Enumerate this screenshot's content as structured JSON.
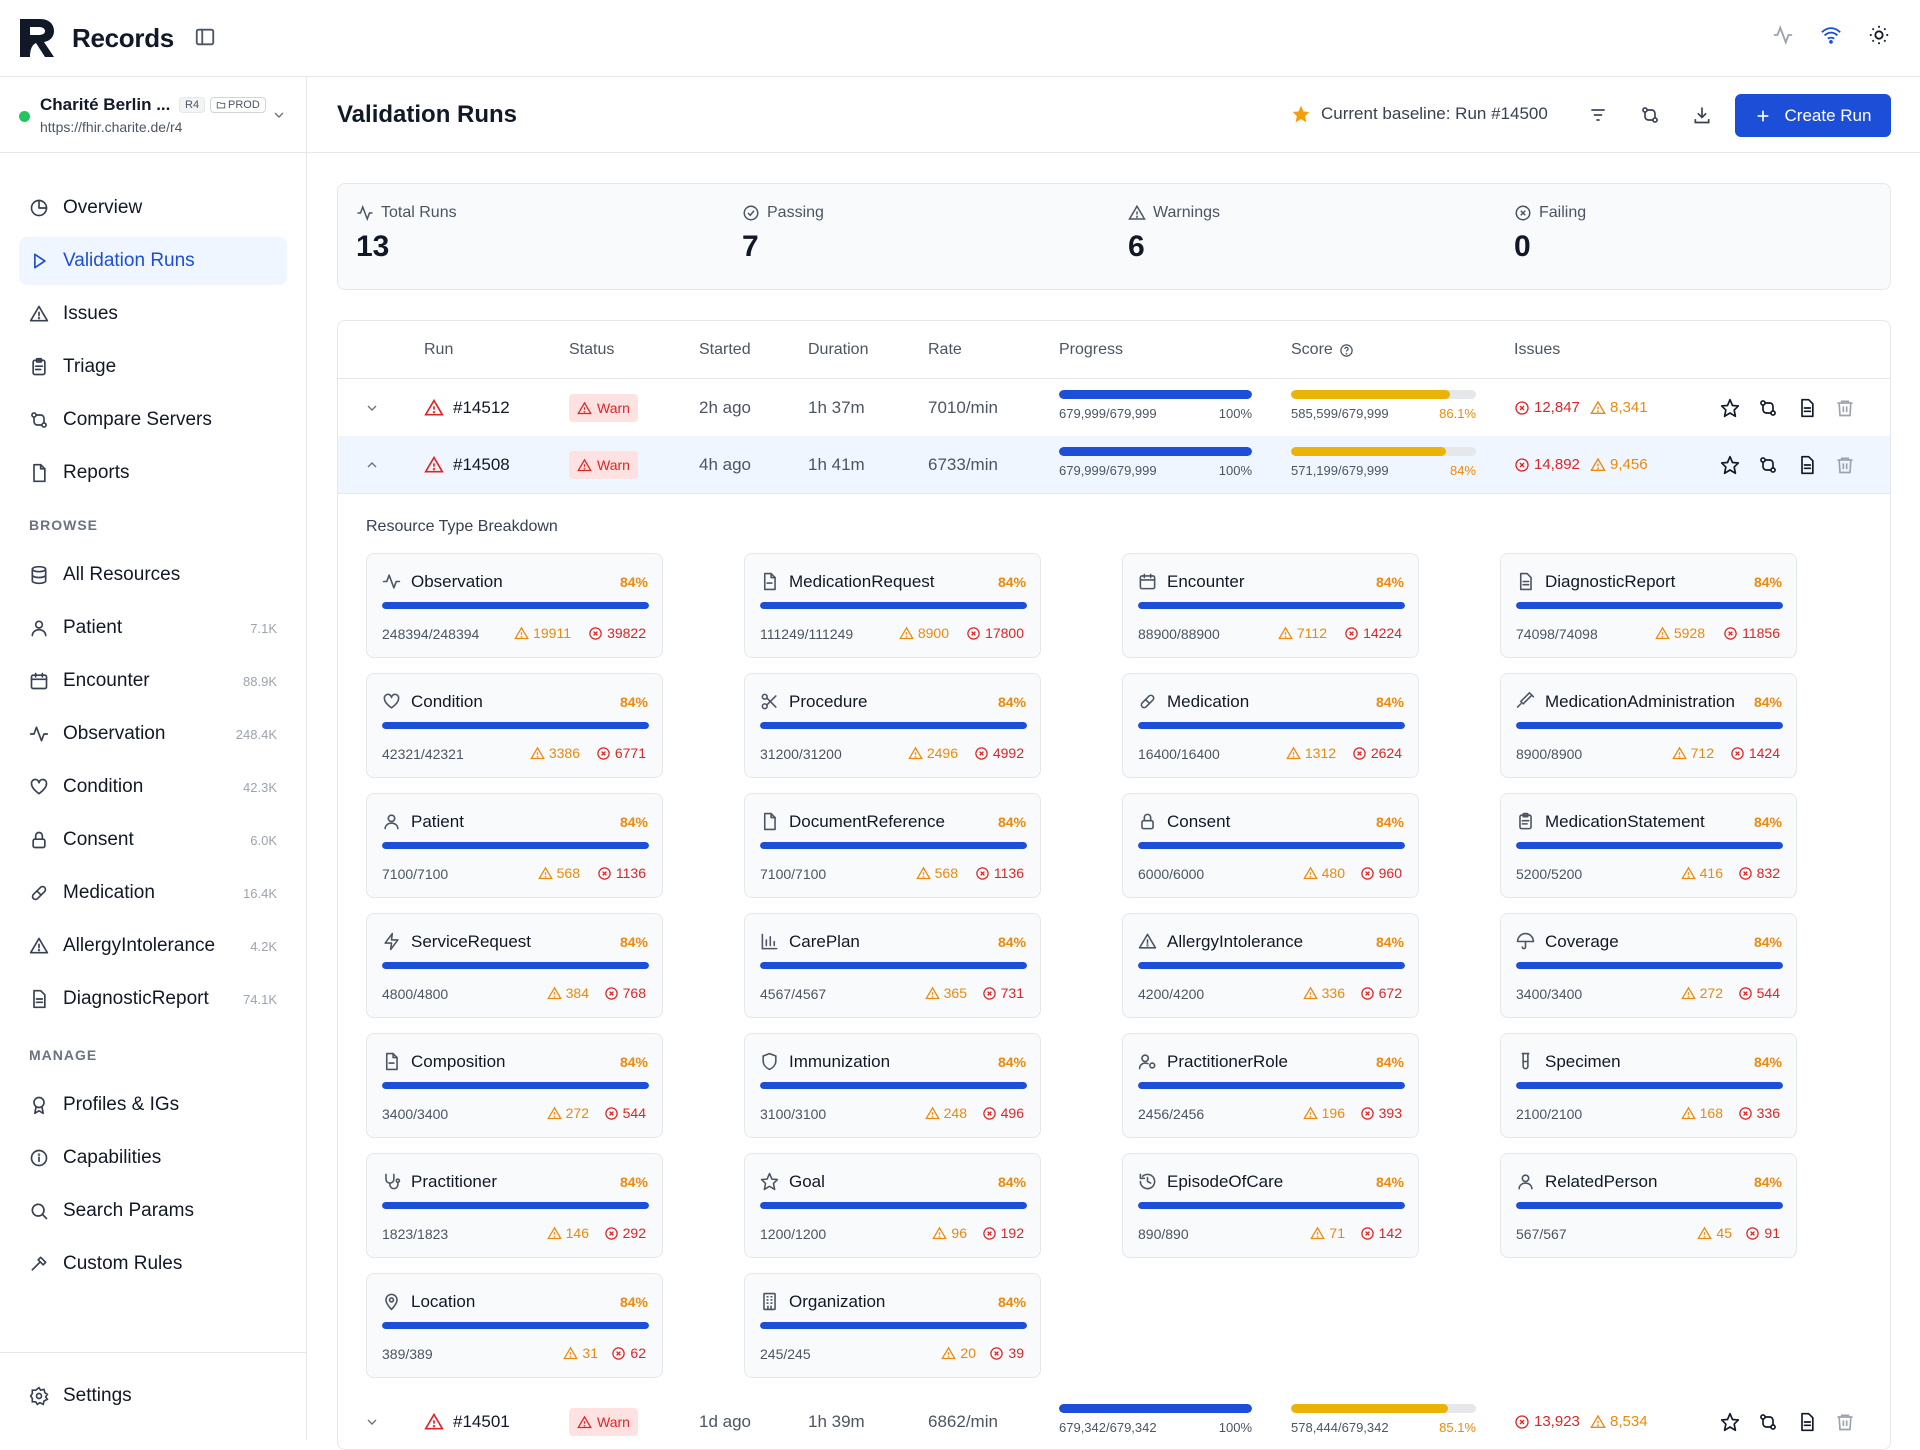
{
  "app": {
    "title": "Records"
  },
  "server": {
    "name": "Charité Berlin ...",
    "version": "R4",
    "env": "PROD",
    "url": "https://fhir.charite.de/r4"
  },
  "sidebar": {
    "nav": [
      {
        "label": "Overview",
        "icon": "pie-chart-icon"
      },
      {
        "label": "Validation Runs",
        "icon": "play-icon"
      },
      {
        "label": "Issues",
        "icon": "warning-icon"
      },
      {
        "label": "Triage",
        "icon": "clipboard-icon"
      },
      {
        "label": "Compare Servers",
        "icon": "compare-icon"
      },
      {
        "label": "Reports",
        "icon": "document-icon"
      }
    ],
    "browse_label": "BROWSE",
    "browse": [
      {
        "label": "All Resources",
        "count": ""
      },
      {
        "label": "Patient",
        "count": "7.1K"
      },
      {
        "label": "Encounter",
        "count": "88.9K"
      },
      {
        "label": "Observation",
        "count": "248.4K"
      },
      {
        "label": "Condition",
        "count": "42.3K"
      },
      {
        "label": "Consent",
        "count": "6.0K"
      },
      {
        "label": "Medication",
        "count": "16.4K"
      },
      {
        "label": "AllergyIntolerance",
        "count": "4.2K"
      },
      {
        "label": "DiagnosticReport",
        "count": "74.1K"
      }
    ],
    "manage_label": "MANAGE",
    "manage": [
      {
        "label": "Profiles & IGs"
      },
      {
        "label": "Capabilities"
      },
      {
        "label": "Search Params"
      },
      {
        "label": "Custom Rules"
      }
    ],
    "settings": "Settings"
  },
  "header": {
    "title": "Validation Runs",
    "baseline": "Current baseline: Run #14500",
    "create": "Create Run"
  },
  "stats": [
    {
      "label": "Total Runs",
      "value": "13"
    },
    {
      "label": "Passing",
      "value": "7"
    },
    {
      "label": "Warnings",
      "value": "6"
    },
    {
      "label": "Failing",
      "value": "0"
    }
  ],
  "table": {
    "columns": [
      "Run",
      "Status",
      "Started",
      "Duration",
      "Rate",
      "Progress",
      "Score",
      "Issues"
    ],
    "rows": [
      {
        "id": "#14512",
        "status": "Warn",
        "started": "2h ago",
        "duration": "1h 37m",
        "rate": "7010/min",
        "progress_text": "679,999/679,999",
        "progress_pct": "100%",
        "progress": 1.0,
        "score_text": "585,599/679,999",
        "score_pct": "86.1%",
        "score": 0.861,
        "errors": "12,847",
        "warnings": "8,341"
      },
      {
        "id": "#14508",
        "status": "Warn",
        "started": "4h ago",
        "duration": "1h 41m",
        "rate": "6733/min",
        "progress_text": "679,999/679,999",
        "progress_pct": "100%",
        "progress": 1.0,
        "score_text": "571,199/679,999",
        "score_pct": "84%",
        "score": 0.84,
        "errors": "14,892",
        "warnings": "9,456"
      },
      {
        "id": "#14501",
        "status": "Warn",
        "started": "1d ago",
        "duration": "1h 39m",
        "rate": "6862/min",
        "progress_text": "679,342/679,342",
        "progress_pct": "100%",
        "progress": 1.0,
        "score_text": "578,444/679,342",
        "score_pct": "85.1%",
        "score": 0.851,
        "errors": "13,923",
        "warnings": "8,534"
      }
    ]
  },
  "breakdown": {
    "title": "Resource Type Breakdown",
    "items": [
      {
        "name": "Observation",
        "icon": "activity-icon",
        "pct": "84%",
        "fill": 1.0,
        "count": "248394/248394",
        "warn": "19911",
        "err": "39822"
      },
      {
        "name": "MedicationRequest",
        "icon": "file-icon",
        "pct": "84%",
        "fill": 1.0,
        "count": "111249/111249",
        "warn": "8900",
        "err": "17800"
      },
      {
        "name": "Encounter",
        "icon": "calendar-icon",
        "pct": "84%",
        "fill": 1.0,
        "count": "88900/88900",
        "warn": "7112",
        "err": "14224"
      },
      {
        "name": "DiagnosticReport",
        "icon": "report-icon",
        "pct": "84%",
        "fill": 1.0,
        "count": "74098/74098",
        "warn": "5928",
        "err": "11856"
      },
      {
        "name": "Condition",
        "icon": "heart-icon",
        "pct": "84%",
        "fill": 1.0,
        "count": "42321/42321",
        "warn": "3386",
        "err": "6771"
      },
      {
        "name": "Procedure",
        "icon": "scissors-icon",
        "pct": "84%",
        "fill": 1.0,
        "count": "31200/31200",
        "warn": "2496",
        "err": "4992"
      },
      {
        "name": "Medication",
        "icon": "pill-icon",
        "pct": "84%",
        "fill": 1.0,
        "count": "16400/16400",
        "warn": "1312",
        "err": "2624"
      },
      {
        "name": "MedicationAdministration",
        "icon": "syringe-icon",
        "pct": "84%",
        "fill": 1.0,
        "count": "8900/8900",
        "warn": "712",
        "err": "1424"
      },
      {
        "name": "Patient",
        "icon": "user-icon",
        "pct": "84%",
        "fill": 1.0,
        "count": "7100/7100",
        "warn": "568",
        "err": "1136"
      },
      {
        "name": "DocumentReference",
        "icon": "document-icon",
        "pct": "84%",
        "fill": 1.0,
        "count": "7100/7100",
        "warn": "568",
        "err": "1136"
      },
      {
        "name": "Consent",
        "icon": "lock-icon",
        "pct": "84%",
        "fill": 1.0,
        "count": "6000/6000",
        "warn": "480",
        "err": "960"
      },
      {
        "name": "MedicationStatement",
        "icon": "clipboard-icon",
        "pct": "84%",
        "fill": 1.0,
        "count": "5200/5200",
        "warn": "416",
        "err": "832"
      },
      {
        "name": "ServiceRequest",
        "icon": "zap-icon",
        "pct": "84%",
        "fill": 1.0,
        "count": "4800/4800",
        "warn": "384",
        "err": "768"
      },
      {
        "name": "CarePlan",
        "icon": "bar-chart-icon",
        "pct": "84%",
        "fill": 1.0,
        "count": "4567/4567",
        "warn": "365",
        "err": "731"
      },
      {
        "name": "AllergyIntolerance",
        "icon": "warning-icon",
        "pct": "84%",
        "fill": 1.0,
        "count": "4200/4200",
        "warn": "336",
        "err": "672"
      },
      {
        "name": "Coverage",
        "icon": "umbrella-icon",
        "pct": "84%",
        "fill": 1.0,
        "count": "3400/3400",
        "warn": "272",
        "err": "544"
      },
      {
        "name": "Composition",
        "icon": "file-icon",
        "pct": "84%",
        "fill": 1.0,
        "count": "3400/3400",
        "warn": "272",
        "err": "544"
      },
      {
        "name": "Immunization",
        "icon": "shield-icon",
        "pct": "84%",
        "fill": 1.0,
        "count": "3100/3100",
        "warn": "248",
        "err": "496"
      },
      {
        "name": "PractitionerRole",
        "icon": "user-cog-icon",
        "pct": "84%",
        "fill": 1.0,
        "count": "2456/2456",
        "warn": "196",
        "err": "393"
      },
      {
        "name": "Specimen",
        "icon": "test-tube-icon",
        "pct": "84%",
        "fill": 1.0,
        "count": "2100/2100",
        "warn": "168",
        "err": "336"
      },
      {
        "name": "Practitioner",
        "icon": "stethoscope-icon",
        "pct": "84%",
        "fill": 1.0,
        "count": "1823/1823",
        "warn": "146",
        "err": "292"
      },
      {
        "name": "Goal",
        "icon": "star-icon",
        "pct": "84%",
        "fill": 1.0,
        "count": "1200/1200",
        "warn": "96",
        "err": "192"
      },
      {
        "name": "EpisodeOfCare",
        "icon": "history-icon",
        "pct": "84%",
        "fill": 1.0,
        "count": "890/890",
        "warn": "71",
        "err": "142"
      },
      {
        "name": "RelatedPerson",
        "icon": "user-icon",
        "pct": "84%",
        "fill": 1.0,
        "count": "567/567",
        "warn": "45",
        "err": "91"
      },
      {
        "name": "Location",
        "icon": "map-pin-icon",
        "pct": "84%",
        "fill": 1.0,
        "count": "389/389",
        "warn": "31",
        "err": "62"
      },
      {
        "name": "Organization",
        "icon": "building-icon",
        "pct": "84%",
        "fill": 1.0,
        "count": "245/245",
        "warn": "20",
        "err": "39"
      }
    ]
  },
  "colors": {
    "accent": "#1d4ed8",
    "warning": "#ea8a0c",
    "error": "#dc2626",
    "success": "#22c55e",
    "score_bar": "#eab308"
  }
}
